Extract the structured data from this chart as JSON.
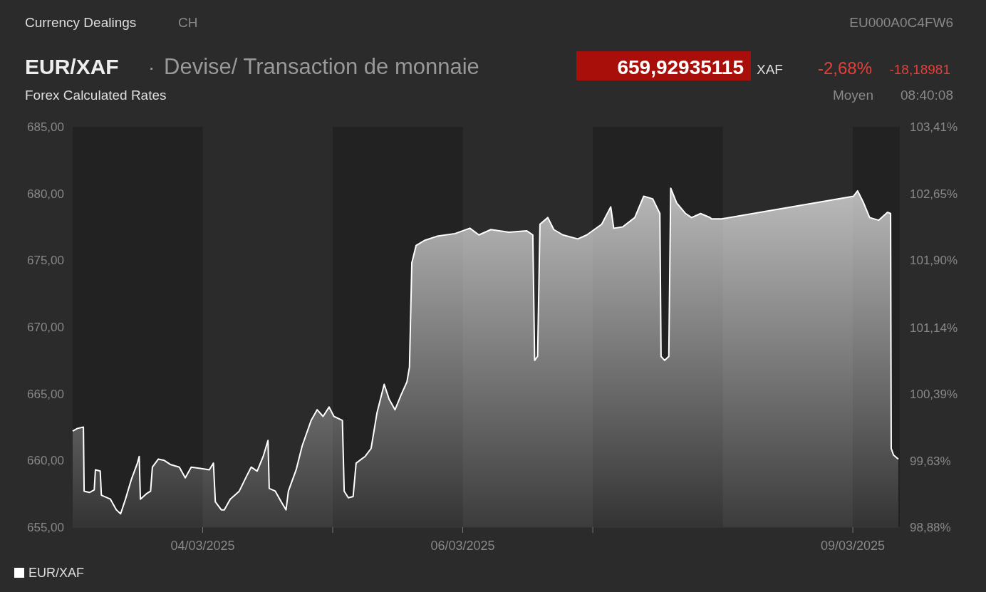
{
  "chart_data": {
    "type": "area",
    "title": "EUR/XAF",
    "subtitle": "Devise/ Transaction de monnaie",
    "annotations": [
      "Currency Dealings",
      "CH",
      "EU000A0C4FW6",
      "·",
      "659,92935115",
      "XAF",
      "-2,68%",
      "-18,18981",
      "Forex Calculated Rates",
      "Moyen",
      "08:40:08"
    ],
    "xlim": [
      "2025-03-03T00:00",
      "2025-03-09T08:40"
    ],
    "xticks": [
      {
        "value": "2025-03-04",
        "label": "04/03/2025"
      },
      {
        "value": "2025-03-05",
        "label": null
      },
      {
        "value": "2025-03-06",
        "label": "06/03/2025"
      },
      {
        "value": "2025-03-07",
        "label": null
      },
      {
        "value": "2025-03-09",
        "label": "09/03/2025"
      }
    ],
    "ylim": [
      655,
      685
    ],
    "yticks": [
      {
        "value": 655,
        "label": "655,00"
      },
      {
        "value": 660,
        "label": "660,00"
      },
      {
        "value": 665,
        "label": "665,00"
      },
      {
        "value": 670,
        "label": "670,00"
      },
      {
        "value": 675,
        "label": "675,00"
      },
      {
        "value": 680,
        "label": "680,00"
      },
      {
        "value": 685,
        "label": "685,00"
      }
    ],
    "y2lim": [
      98.88,
      103.41
    ],
    "y2ticks": [
      {
        "value": 98.88,
        "label": "98,88%"
      },
      {
        "value": 99.63,
        "label": "99,63%"
      },
      {
        "value": 100.39,
        "label": "100,39%"
      },
      {
        "value": 101.14,
        "label": "101,14%"
      },
      {
        "value": 101.9,
        "label": "101,90%"
      },
      {
        "value": 102.65,
        "label": "102,65%"
      },
      {
        "value": 103.41,
        "label": "103,41%"
      }
    ],
    "bands": [
      {
        "axis": "x",
        "from": "2025-03-03",
        "to": "2025-03-04",
        "color": "#222222"
      },
      {
        "axis": "x",
        "from": "2025-03-05",
        "to": "2025-03-06",
        "color": "#222222"
      },
      {
        "axis": "x",
        "from": "2025-03-07",
        "to": "2025-03-08",
        "color": "#222222"
      },
      {
        "axis": "x",
        "from": "2025-03-09",
        "to": "2025-03-09T08:40",
        "color": "#222222"
      }
    ],
    "grid": false,
    "legend": "bottom left",
    "series": [
      {
        "name": "EUR/XAF",
        "color": "#ffffff",
        "x": [
          "2025-03-03T00:00",
          "2025-03-03T00:53",
          "2025-03-03T01:59",
          "2025-03-03T02:07",
          "2025-03-03T03:06",
          "2025-03-03T03:59",
          "2025-03-03T04:12",
          "2025-03-03T05:05",
          "2025-03-03T05:18",
          "2025-03-03T06:58",
          "2025-03-03T08:04",
          "2025-03-03T08:51",
          "2025-03-03T09:45",
          "2025-03-03T10:51",
          "2025-03-03T11:57",
          "2025-03-03T12:17",
          "2025-03-03T12:30",
          "2025-03-03T13:36",
          "2025-03-03T14:23",
          "2025-03-03T14:43",
          "2025-03-03T15:49",
          "2025-03-03T16:55",
          "2025-03-03T18:01",
          "2025-03-03T19:41",
          "2025-03-03T20:47",
          "2025-03-03T21:53",
          "2025-03-03T23:34",
          "2025-03-04T01:13",
          "2025-03-04T01:59",
          "2025-03-04T02:20",
          "2025-03-04T03:26",
          "2025-03-04T03:59",
          "2025-03-04T05:05",
          "2025-03-04T06:45",
          "2025-03-04T08:04",
          "2025-03-04T08:57",
          "2025-03-04T10:03",
          "2025-03-04T11:10",
          "2025-03-04T12:03",
          "2025-03-04T12:17",
          "2025-03-04T13:24",
          "2025-03-04T14:30",
          "2025-03-04T15:23",
          "2025-03-04T15:49",
          "2025-03-04T17:15",
          "2025-03-04T18:22",
          "2025-03-04T20:01",
          "2025-03-04T21:07",
          "2025-03-04T22:13",
          "2025-03-04T23:20",
          "2025-03-05T00:13",
          "2025-03-05T01:47",
          "2025-03-05T02:07",
          "2025-03-05T02:53",
          "2025-03-05T03:46",
          "2025-03-05T04:19",
          "2025-03-05T05:59",
          "2025-03-05T07:05",
          "2025-03-05T08:11",
          "2025-03-05T09:30",
          "2025-03-05T10:24",
          "2025-03-05T11:30",
          "2025-03-05T12:36",
          "2025-03-05T13:42",
          "2025-03-05T14:10",
          "2025-03-05T14:36",
          "2025-03-05T15:23",
          "2025-03-05T17:02",
          "2025-03-05T19:15",
          "2025-03-05T22:34",
          "2025-03-06T01:19",
          "2025-03-06T02:59",
          "2025-03-06T05:12",
          "2025-03-06T08:31",
          "2025-03-06T11:50",
          "2025-03-06T12:56",
          "2025-03-06T13:16",
          "2025-03-06T13:49",
          "2025-03-06T14:15",
          "2025-03-06T15:42",
          "2025-03-06T16:48",
          "2025-03-06T18:29",
          "2025-03-06T21:14",
          "2025-03-06T22:54",
          "2025-03-07T01:39",
          "2025-03-07T03:19",
          "2025-03-07T03:52",
          "2025-03-07T05:31",
          "2025-03-07T07:45",
          "2025-03-07T09:24",
          "2025-03-07T11:04",
          "2025-03-07T12:23",
          "2025-03-07T12:36",
          "2025-03-07T13:16",
          "2025-03-07T14:02",
          "2025-03-07T14:23",
          "2025-03-07T15:29",
          "2025-03-07T17:08",
          "2025-03-07T18:14",
          "2025-03-07T19:54",
          "2025-03-07T21:40",
          "2025-03-07T21:53",
          "2025-03-07T23:47",
          "2025-03-09T00:07",
          "2025-03-09T00:53",
          "2025-03-09T01:59",
          "2025-03-09T03:06",
          "2025-03-09T04:45",
          "2025-03-09T06:24",
          "2025-03-09T06:58",
          "2025-03-09T07:05",
          "2025-03-09T07:31",
          "2025-03-09T08:24"
        ],
        "values": [
          662.2,
          662.4,
          662.5,
          657.7,
          657.6,
          657.8,
          659.3,
          659.2,
          657.4,
          657.1,
          656.3,
          656.0,
          657.1,
          658.6,
          659.8,
          660.3,
          657.1,
          657.5,
          657.7,
          659.5,
          660.1,
          660.0,
          659.7,
          659.5,
          658.7,
          659.5,
          659.4,
          659.3,
          659.8,
          656.9,
          656.3,
          656.3,
          657.1,
          657.7,
          658.8,
          659.5,
          659.2,
          660.3,
          661.5,
          657.9,
          657.7,
          656.9,
          656.3,
          657.7,
          659.3,
          661.1,
          663.0,
          663.8,
          663.3,
          664.0,
          663.3,
          663.0,
          657.7,
          657.2,
          657.3,
          659.8,
          660.3,
          660.9,
          663.6,
          665.7,
          664.6,
          663.8,
          664.9,
          665.9,
          667.0,
          674.8,
          676.1,
          676.5,
          676.8,
          677.0,
          677.4,
          676.9,
          677.3,
          677.1,
          677.2,
          676.9,
          667.5,
          667.8,
          677.7,
          678.2,
          677.3,
          676.9,
          676.6,
          676.9,
          677.7,
          679.0,
          677.4,
          677.5,
          678.2,
          679.8,
          679.6,
          678.5,
          667.8,
          667.5,
          667.8,
          680.4,
          679.3,
          678.5,
          678.2,
          678.5,
          678.2,
          678.1,
          678.1,
          679.8,
          680.2,
          679.3,
          678.2,
          678.0,
          678.6,
          678.5,
          660.9,
          660.4,
          660.1
        ]
      }
    ]
  }
}
